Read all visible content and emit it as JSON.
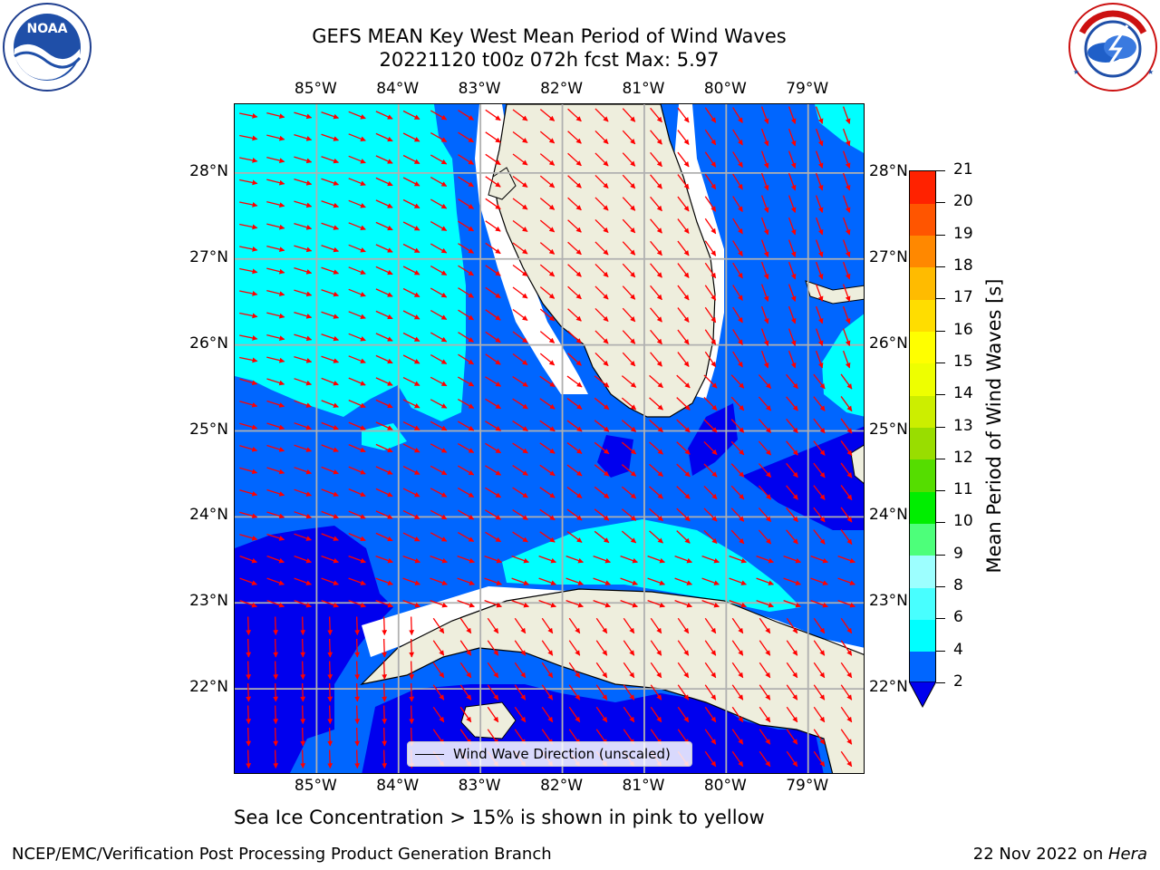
{
  "title": {
    "line1": "GEFS MEAN Key West Mean Period of Wind Waves",
    "line2": "20221120 t00z 072h fcst   Max: 5.97"
  },
  "logos": {
    "left": {
      "icon": "noaa-logo",
      "text": "NOAA"
    },
    "right": {
      "icon": "nws-logo",
      "text": "NATIONAL WEATHER SERVICE"
    }
  },
  "map": {
    "lon_labels": [
      "85°W",
      "84°W",
      "83°W",
      "82°W",
      "81°W",
      "80°W",
      "79°W"
    ],
    "lat_labels": [
      "28°N",
      "27°N",
      "26°N",
      "25°N",
      "24°N",
      "23°N",
      "22°N"
    ],
    "lon_range": [
      -86.0,
      -78.3
    ],
    "lat_range": [
      21.0,
      28.8
    ],
    "grid": true,
    "colors": {
      "land": "#eeeedd",
      "band_2_4": "#0066ff",
      "band_4_6": "#00ffff",
      "below_2": "#0000ee",
      "vectors": "#ff0000"
    }
  },
  "colorbar": {
    "label": "Mean Period of Wind Waves [s]",
    "ticks": [
      "2",
      "4",
      "6",
      "8",
      "9",
      "10",
      "11",
      "12",
      "13",
      "14",
      "15",
      "16",
      "17",
      "18",
      "19",
      "20",
      "21"
    ],
    "colors": [
      "#0066ff",
      "#00ffff",
      "#48ffff",
      "#9dffff",
      "#4dff7a",
      "#00ee00",
      "#55dd00",
      "#99dd00",
      "#ccee00",
      "#eeff00",
      "#ffff00",
      "#ffdd00",
      "#ffbb00",
      "#ff8800",
      "#ff5500",
      "#ff2200"
    ],
    "extend_color": "#0000ee"
  },
  "legend": {
    "label": "Wind Wave Direction (unscaled)"
  },
  "subtitle": "Sea Ice Concentration > 15% is shown in pink to yellow",
  "footer": {
    "left": "NCEP/EMC/Verification Post Processing Product Generation Branch",
    "right_prefix": "22 Nov 2022 on ",
    "right_machine": "Hera"
  }
}
